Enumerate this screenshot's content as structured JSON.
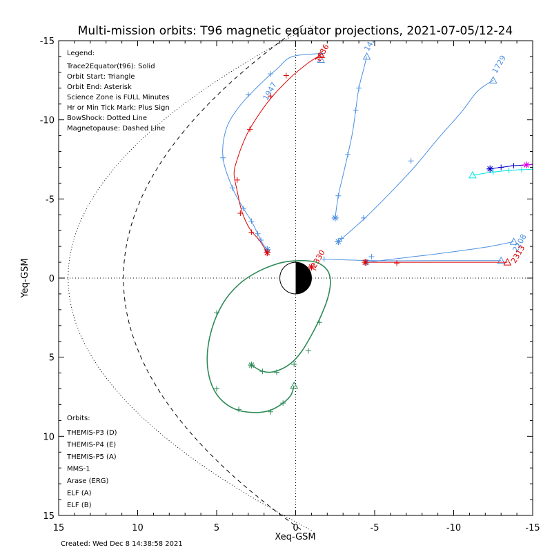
{
  "chart_data": {
    "type": "line",
    "title": "Multi-mission orbits: T96 magnetic equator projections, 2021-07-05/12-24",
    "xlabel": "Xeq-GSM",
    "ylabel": "Yeq-GSM",
    "xlim": [
      15,
      -15
    ],
    "ylim": [
      15,
      -15
    ],
    "xticks": [
      15,
      10,
      5,
      0,
      -5,
      -10,
      -15
    ],
    "yticks": [
      -15,
      -10,
      -5,
      0,
      5,
      10,
      15
    ],
    "xtick_labels": [
      "15",
      "10",
      "5",
      "0",
      "-5",
      "-10",
      "-15"
    ],
    "ytick_labels": [
      "-15",
      "-10",
      "-5",
      "0",
      "5",
      "10",
      "15"
    ],
    "created": "Created: Wed Dec  8 14:38:58 2021",
    "legend": {
      "header": "Legend:",
      "lines": [
        "Trace2Equator(t96): Solid",
        "Orbit Start: Triangle",
        "Orbit End: Asterisk",
        "Science Zone is FULL Minutes",
        "Hr or Min Tick Mark: Plus Sign",
        "BowShock: Dotted Line",
        "Magnetopause: Dashed Line"
      ]
    },
    "orbits_header": "Orbits:",
    "series_legend": [
      {
        "name": "THEMIS-P3 (D)",
        "color": "#00e5e5"
      },
      {
        "name": "THEMIS-P4 (E)",
        "color": "#0000cc"
      },
      {
        "name": "THEMIS-P5 (A)",
        "color": "#e000e0"
      },
      {
        "name": "MMS-1",
        "color": "#000000"
      },
      {
        "name": "Arase (ERG)",
        "color": "#2e8b57"
      },
      {
        "name": "ELF (A)",
        "color": "#4a90e2"
      },
      {
        "name": "ELF (B)",
        "color": "#dd0000"
      }
    ],
    "series": [
      {
        "name": "THEMIS-P3 (D)",
        "color": "#00e5e5",
        "points": [
          [
            -11.2,
            -6.5
          ],
          [
            -12.5,
            -6.7
          ],
          [
            -13.5,
            -6.8
          ],
          [
            -14.3,
            -6.85
          ],
          [
            -15.5,
            -6.9
          ]
        ],
        "plus": [
          [
            -12.5,
            -6.7
          ],
          [
            -13.5,
            -6.8
          ],
          [
            -14.3,
            -6.85
          ],
          [
            -15.5,
            -6.9
          ]
        ],
        "start": [
          -11.2,
          -6.5
        ],
        "end": null
      },
      {
        "name": "THEMIS-P4 (E)",
        "color": "#0000cc",
        "points": [
          [
            -12.3,
            -6.9
          ],
          [
            -13.0,
            -7.0
          ],
          [
            -13.8,
            -7.1
          ],
          [
            -14.5,
            -7.15
          ],
          [
            -15.2,
            -7.2
          ]
        ],
        "plus": [
          [
            -13.0,
            -7.0
          ],
          [
            -13.8,
            -7.1
          ]
        ],
        "start": null,
        "end": [
          -12.3,
          -6.9
        ]
      },
      {
        "name": "THEMIS-P5 (A)",
        "color": "#e000e0",
        "points": [
          [
            -14.2,
            -7.1
          ],
          [
            -14.6,
            -7.15
          ],
          [
            -15.0,
            -7.2
          ]
        ],
        "plus": [],
        "start": null,
        "end": [
          -14.6,
          -7.15
        ]
      },
      {
        "name": "Arase (ERG)",
        "color": "#2e8b57",
        "points": [
          [
            0.1,
            6.8
          ],
          [
            0.3,
            7.4
          ],
          [
            0.8,
            7.9
          ],
          [
            1.6,
            8.35
          ],
          [
            2.6,
            8.5
          ],
          [
            3.8,
            8.3
          ],
          [
            4.8,
            7.6
          ],
          [
            5.4,
            6.5
          ],
          [
            5.6,
            5.0
          ],
          [
            5.3,
            3.2
          ],
          [
            4.6,
            1.6
          ],
          [
            3.6,
            0.4
          ],
          [
            2.4,
            -0.4
          ],
          [
            1.0,
            -0.95
          ],
          [
            -0.2,
            -1.1
          ],
          [
            -1.3,
            -1.0
          ],
          [
            -2.0,
            -0.5
          ],
          [
            -2.2,
            0.2
          ],
          [
            -2.05,
            1.2
          ],
          [
            -1.6,
            2.4
          ],
          [
            -1.0,
            3.6
          ],
          [
            -0.4,
            4.6
          ],
          [
            0.2,
            5.3
          ],
          [
            0.9,
            5.75
          ],
          [
            1.6,
            5.95
          ],
          [
            2.2,
            5.85
          ],
          [
            2.8,
            5.5
          ]
        ],
        "plus": [
          [
            0.8,
            7.9
          ],
          [
            1.6,
            8.45
          ],
          [
            3.6,
            8.3
          ],
          [
            5.0,
            7.0
          ],
          [
            5.0,
            2.2
          ],
          [
            2.1,
            5.9
          ],
          [
            1.2,
            5.95
          ],
          [
            0.1,
            5.45
          ],
          [
            -0.8,
            4.6
          ],
          [
            -1.5,
            2.8
          ]
        ],
        "start": [
          0.1,
          6.8
        ],
        "end": [
          2.8,
          5.5
        ]
      },
      {
        "name": "ELF (A)",
        "color": "#4a90e2",
        "points": [
          [
            -2.5,
            -3.8
          ],
          [
            -2.7,
            -5.2
          ],
          [
            -3.0,
            -6.5
          ],
          [
            -3.3,
            -7.8
          ],
          [
            -3.6,
            -9.2
          ],
          [
            -3.8,
            -10.6
          ],
          [
            -4.0,
            -12.0
          ],
          [
            -4.3,
            -13.2
          ],
          [
            -4.5,
            -14.0
          ]
        ],
        "plus": [
          [
            -3.3,
            -7.8
          ],
          [
            -3.8,
            -10.6
          ],
          [
            -4.0,
            -12.0
          ],
          [
            -2.7,
            -5.2
          ]
        ],
        "start": [
          -4.5,
          -14.0
        ],
        "end": [
          -2.5,
          -3.8
        ],
        "label": "1420",
        "label_at": [
          -4.6,
          -14.3
        ]
      },
      {
        "name": "ELF (A)",
        "color": "#4a90e2",
        "points": [
          [
            -2.7,
            -2.3
          ],
          [
            -3.5,
            -3.0
          ],
          [
            -4.5,
            -3.9
          ],
          [
            -6.0,
            -5.4
          ],
          [
            -7.5,
            -7.0
          ],
          [
            -9.0,
            -8.8
          ],
          [
            -10.5,
            -10.5
          ],
          [
            -11.5,
            -11.8
          ],
          [
            -12.5,
            -12.5
          ]
        ],
        "plus": [
          [
            -4.3,
            -3.8
          ],
          [
            -7.3,
            -7.4
          ],
          [
            -2.9,
            -2.5
          ]
        ],
        "start": [
          -12.5,
          -12.5
        ],
        "end": [
          -2.7,
          -2.3
        ],
        "label": "1729",
        "label_at": [
          -12.7,
          -12.9
        ]
      },
      {
        "name": "ELF (A)",
        "color": "#4a90e2",
        "points": [
          [
            -4.5,
            -1.0
          ],
          [
            -7.0,
            -1.3
          ],
          [
            -9.5,
            -1.6
          ],
          [
            -12.0,
            -1.95
          ],
          [
            -13.8,
            -2.3
          ]
        ],
        "plus": [
          [
            -4.8,
            -1.35
          ]
        ],
        "start": [
          -13.8,
          -2.3
        ],
        "end": [
          -4.5,
          -1.0
        ],
        "label": "2208",
        "label_at": [
          -14.0,
          -1.6
        ]
      },
      {
        "name": "ELF (A)",
        "color": "#4a90e2",
        "points": [
          [
            -1.8,
            -1.2
          ],
          [
            -5.0,
            -1.1
          ],
          [
            -9.0,
            -1.1
          ],
          [
            -13.0,
            -1.1
          ]
        ],
        "plus": [
          [
            -1.8,
            -1.2
          ]
        ],
        "start": [
          -13.0,
          -1.1
        ],
        "end": null
      },
      {
        "name": "ELF (A)",
        "color": "#4a90e2",
        "points": [
          [
            1.8,
            -1.8
          ],
          [
            2.1,
            -2.2
          ],
          [
            2.4,
            -2.8
          ],
          [
            2.8,
            -3.6
          ],
          [
            3.3,
            -4.4
          ],
          [
            4.0,
            -5.7
          ],
          [
            4.6,
            -7.6
          ],
          [
            4.4,
            -9.4
          ],
          [
            3.6,
            -10.8
          ],
          [
            2.4,
            -12.1
          ],
          [
            1.2,
            -13.2
          ],
          [
            0.2,
            -14.0
          ],
          [
            -1.8,
            -14.2
          ]
        ],
        "plus": [
          [
            2.4,
            -2.8
          ],
          [
            2.8,
            -3.6
          ],
          [
            3.3,
            -4.4
          ],
          [
            4.0,
            -5.7
          ],
          [
            4.6,
            -7.6
          ],
          [
            3.0,
            -11.6
          ],
          [
            1.6,
            -12.9
          ],
          [
            2.2,
            -2.4
          ]
        ],
        "start": [
          -1.6,
          -13.8
        ],
        "end": [
          1.8,
          -1.8
        ],
        "label": "1947",
        "label_at": [
          1.8,
          -11.2
        ]
      },
      {
        "name": "ELF (B)",
        "color": "#dd0000",
        "points": [
          [
            -0.9,
            -0.7
          ],
          [
            -1.1,
            -0.6
          ],
          [
            -1.3,
            -0.5
          ]
        ],
        "plus": [],
        "start": null,
        "end": [
          -1.0,
          -0.7
        ],
        "label": "2330",
        "label_at": [
          -1.25,
          -0.6
        ]
      },
      {
        "name": "ELF (B)",
        "color": "#dd0000",
        "points": [
          [
            -4.4,
            -1.0
          ],
          [
            -7.5,
            -1.0
          ],
          [
            -10.5,
            -1.0
          ],
          [
            -13.4,
            -1.0
          ]
        ],
        "plus": [
          [
            -6.4,
            -0.95
          ]
        ],
        "start": [
          -13.4,
          -1.0
        ],
        "end": [
          -4.4,
          -1.0
        ],
        "label": "2313",
        "label_at": [
          -13.9,
          -0.9
        ]
      },
      {
        "name": "ELF (B)",
        "color": "#dd0000",
        "points": [
          [
            1.8,
            -1.6
          ],
          [
            2.3,
            -2.4
          ],
          [
            2.9,
            -3.1
          ],
          [
            3.4,
            -4.2
          ],
          [
            3.7,
            -5.5
          ],
          [
            3.9,
            -6.6
          ],
          [
            3.7,
            -7.5
          ],
          [
            3.3,
            -8.6
          ],
          [
            2.8,
            -9.6
          ],
          [
            1.7,
            -11.2
          ],
          [
            0.4,
            -12.6
          ],
          [
            -0.8,
            -13.6
          ],
          [
            -1.6,
            -14.1
          ]
        ],
        "plus": [
          [
            3.7,
            -6.2
          ],
          [
            3.5,
            -4.1
          ],
          [
            2.8,
            -2.9
          ],
          [
            2.9,
            -9.4
          ],
          [
            1.6,
            -11.5
          ],
          [
            0.6,
            -12.8
          ]
        ],
        "start": [
          -1.6,
          -14.1
        ],
        "end": [
          1.8,
          -1.6
        ],
        "label": "1636",
        "label_at": [
          -1.5,
          -13.6
        ]
      }
    ],
    "bowshock": {
      "type": "dotted"
    },
    "magnetopause": {
      "type": "dashed"
    }
  }
}
